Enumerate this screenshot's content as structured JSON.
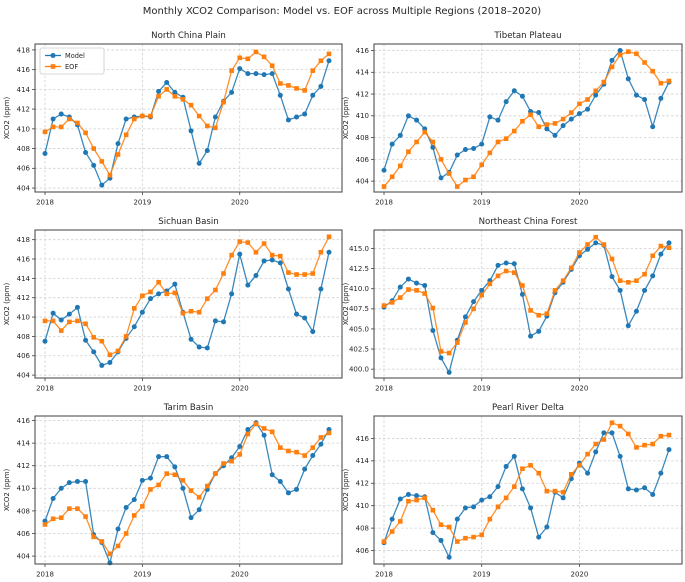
{
  "figure": {
    "suptitle": "Monthly XCO2 Comparison: Model vs. EOF across Multiple Regions (2018–2020)"
  },
  "legend": {
    "items": [
      {
        "label": "Model",
        "color": "#1f77b4",
        "marker": "circle"
      },
      {
        "label": "EOF",
        "color": "#ff7f0e",
        "marker": "square"
      }
    ]
  },
  "colors": {
    "model": "#1f77b4",
    "eof": "#ff7f0e",
    "grid": "#d0d0d0",
    "spine": "#3f3f3f",
    "text": "#262626"
  },
  "time_axis": {
    "description": "36 monthly points, Jan 2018 - Dec 2020",
    "tick_labels": [
      "2018",
      "2019",
      "2020"
    ],
    "tick_month_indices": [
      0,
      12,
      24
    ]
  },
  "chart_data": [
    {
      "type": "line",
      "title": "North China Plain",
      "ylabel": "XCO2 (ppm)",
      "yticks": [
        404,
        406,
        408,
        410,
        412,
        414,
        416,
        418
      ],
      "ytick_decimals": 0,
      "ylim": [
        403.6,
        418.6
      ],
      "x_tick_labels": [
        "2018",
        "2019",
        "2020"
      ],
      "grid": true,
      "legend_position": "upper-left",
      "show_legend": true,
      "series": [
        {
          "name": "Model",
          "values": [
            407.5,
            411.0,
            411.5,
            411.2,
            410.4,
            407.6,
            406.3,
            404.3,
            405.0,
            408.5,
            411.0,
            411.2,
            411.3,
            411.2,
            413.8,
            414.7,
            413.7,
            413.2,
            409.8,
            406.5,
            407.8,
            411.2,
            412.8,
            413.7,
            416.1,
            415.6,
            415.6,
            415.5,
            415.6,
            413.4,
            410.9,
            411.2,
            411.5,
            413.4,
            414.3,
            416.9
          ]
        },
        {
          "name": "EOF",
          "values": [
            409.7,
            410.2,
            410.2,
            411.0,
            410.6,
            409.6,
            408.0,
            406.7,
            405.3,
            407.4,
            409.4,
            411.0,
            411.3,
            411.3,
            413.3,
            414.0,
            413.3,
            413.0,
            412.4,
            411.3,
            410.3,
            410.1,
            412.7,
            415.9,
            417.2,
            417.1,
            417.8,
            417.3,
            416.4,
            414.6,
            414.4,
            414.1,
            413.9,
            415.9,
            416.9,
            417.6
          ]
        }
      ]
    },
    {
      "type": "line",
      "title": "Tibetan Plateau",
      "ylabel": "XCO2 (ppm)",
      "yticks": [
        404,
        406,
        408,
        410,
        412,
        414,
        416
      ],
      "ytick_decimals": 0,
      "ylim": [
        403.0,
        416.6
      ],
      "x_tick_labels": [
        "2018",
        "2019",
        "2020"
      ],
      "grid": true,
      "show_legend": false,
      "series": [
        {
          "name": "Model",
          "values": [
            405.0,
            407.4,
            408.2,
            410.0,
            409.6,
            408.8,
            407.1,
            404.3,
            404.8,
            406.4,
            406.9,
            407.0,
            407.4,
            409.9,
            409.6,
            411.3,
            412.3,
            411.8,
            410.4,
            410.3,
            408.8,
            408.2,
            409.1,
            409.7,
            410.2,
            410.6,
            411.9,
            412.9,
            415.1,
            416.0,
            413.4,
            411.9,
            411.5,
            409.0,
            411.6,
            413.1
          ]
        },
        {
          "name": "EOF",
          "values": [
            403.5,
            404.4,
            405.4,
            406.7,
            407.6,
            408.5,
            407.6,
            406.0,
            404.7,
            403.5,
            404.1,
            404.4,
            405.5,
            406.6,
            407.6,
            407.9,
            408.6,
            409.5,
            410.1,
            409.0,
            409.2,
            409.3,
            409.7,
            410.3,
            411.1,
            411.5,
            412.3,
            413.1,
            414.5,
            415.6,
            415.9,
            415.7,
            414.9,
            414.1,
            413.0,
            413.2
          ]
        }
      ]
    },
    {
      "type": "line",
      "title": "Sichuan Basin",
      "ylabel": "XCO2 (ppm)",
      "yticks": [
        404,
        406,
        408,
        410,
        412,
        414,
        416,
        418
      ],
      "ytick_decimals": 0,
      "ylim": [
        403.7,
        419.0
      ],
      "x_tick_labels": [
        "2018",
        "2019",
        "2020"
      ],
      "grid": true,
      "show_legend": false,
      "series": [
        {
          "name": "Model",
          "values": [
            407.5,
            410.4,
            409.7,
            410.3,
            411.0,
            407.6,
            406.4,
            405.0,
            405.3,
            406.4,
            407.8,
            409.0,
            410.5,
            411.9,
            412.4,
            412.7,
            413.4,
            410.5,
            407.7,
            406.9,
            406.8,
            409.6,
            409.5,
            412.4,
            416.5,
            413.3,
            414.3,
            415.8,
            415.9,
            415.6,
            412.9,
            410.3,
            409.9,
            408.5,
            412.9,
            416.7
          ]
        },
        {
          "name": "EOF",
          "values": [
            409.6,
            409.6,
            408.6,
            409.5,
            409.6,
            409.3,
            407.9,
            407.5,
            406.1,
            406.5,
            408.0,
            410.9,
            412.2,
            412.6,
            413.6,
            412.4,
            412.5,
            410.4,
            410.6,
            410.5,
            411.9,
            412.8,
            414.5,
            416.4,
            417.8,
            417.7,
            416.7,
            417.6,
            416.4,
            416.3,
            414.6,
            414.4,
            414.4,
            414.5,
            416.7,
            418.3
          ]
        }
      ]
    },
    {
      "type": "line",
      "title": "Northeast China Forest",
      "ylabel": "XCO2 (ppm)",
      "yticks": [
        400.0,
        402.5,
        405.0,
        407.5,
        410.0,
        412.5,
        415.0
      ],
      "ytick_decimals": 1,
      "ylim": [
        398.9,
        417.3
      ],
      "x_tick_labels": [
        "2018",
        "2019",
        "2020"
      ],
      "grid": true,
      "show_legend": false,
      "series": [
        {
          "name": "Model",
          "values": [
            407.7,
            408.5,
            410.2,
            411.2,
            410.7,
            410.4,
            404.8,
            401.4,
            399.6,
            403.6,
            406.5,
            408.4,
            409.8,
            411.0,
            412.9,
            413.2,
            413.1,
            409.3,
            404.1,
            404.7,
            406.6,
            409.5,
            410.8,
            412.4,
            414.1,
            414.9,
            415.7,
            415.4,
            411.5,
            409.8,
            405.4,
            407.2,
            409.8,
            411.6,
            414.3,
            415.7
          ]
        },
        {
          "name": "EOF",
          "values": [
            407.9,
            408.3,
            408.9,
            409.9,
            409.8,
            409.4,
            407.6,
            402.2,
            402.0,
            403.3,
            405.8,
            407.5,
            409.2,
            410.6,
            411.6,
            412.2,
            412.0,
            410.4,
            407.3,
            406.7,
            406.9,
            409.8,
            411.0,
            412.6,
            414.5,
            415.5,
            416.4,
            415.5,
            413.7,
            411.0,
            410.8,
            411.0,
            411.8,
            414.1,
            415.3,
            415.1
          ]
        }
      ]
    },
    {
      "type": "line",
      "title": "Tarim Basin",
      "ylabel": "XCO2 (ppm)",
      "yticks": [
        404,
        406,
        408,
        410,
        412,
        414,
        416
      ],
      "ytick_decimals": 0,
      "ylim": [
        403.3,
        416.4
      ],
      "x_tick_labels": [
        "2018",
        "2019",
        "2020"
      ],
      "grid": true,
      "show_legend": false,
      "series": [
        {
          "name": "Model",
          "values": [
            407.1,
            409.1,
            410.0,
            410.5,
            410.6,
            410.6,
            405.9,
            405.2,
            403.4,
            406.4,
            408.3,
            409.0,
            410.7,
            410.9,
            412.8,
            412.8,
            411.9,
            410.0,
            407.4,
            408.1,
            409.9,
            411.3,
            412.0,
            412.7,
            413.7,
            415.2,
            415.8,
            414.7,
            411.2,
            410.6,
            409.6,
            409.9,
            411.7,
            412.9,
            413.9,
            415.2
          ]
        },
        {
          "name": "EOF",
          "values": [
            406.8,
            407.3,
            407.4,
            408.2,
            408.2,
            407.5,
            405.7,
            405.3,
            404.2,
            404.9,
            406.0,
            407.6,
            408.4,
            409.9,
            410.3,
            411.3,
            411.2,
            410.7,
            409.8,
            409.2,
            410.2,
            411.3,
            412.2,
            412.4,
            413.0,
            414.8,
            415.7,
            415.3,
            415.0,
            413.6,
            413.3,
            413.2,
            412.9,
            413.6,
            414.5,
            414.9
          ]
        }
      ]
    },
    {
      "type": "line",
      "title": "Pearl River Delta",
      "ylabel": "XCO2 (ppm)",
      "yticks": [
        406,
        408,
        410,
        412,
        414,
        416
      ],
      "ytick_decimals": 0,
      "ylim": [
        404.8,
        418.0
      ],
      "x_tick_labels": [
        "2018",
        "2019",
        "2020"
      ],
      "grid": true,
      "show_legend": false,
      "series": [
        {
          "name": "Model",
          "values": [
            406.7,
            408.8,
            410.6,
            411.0,
            410.9,
            410.8,
            407.6,
            406.9,
            405.4,
            408.8,
            409.8,
            409.9,
            410.5,
            410.8,
            411.7,
            413.5,
            414.4,
            411.5,
            409.8,
            407.2,
            408.1,
            411.2,
            410.7,
            412.4,
            413.8,
            412.9,
            414.8,
            416.5,
            416.5,
            414.4,
            411.5,
            411.4,
            411.6,
            411.0,
            412.9,
            415.0
          ]
        },
        {
          "name": "EOF",
          "values": [
            406.8,
            407.7,
            408.6,
            410.4,
            410.5,
            410.7,
            409.6,
            408.3,
            408.1,
            406.8,
            407.1,
            407.2,
            407.4,
            408.8,
            409.9,
            410.7,
            411.7,
            413.3,
            413.6,
            412.9,
            411.3,
            411.3,
            411.2,
            412.8,
            413.6,
            414.6,
            415.5,
            415.9,
            417.4,
            417.1,
            416.4,
            415.2,
            415.4,
            415.5,
            416.2,
            416.3
          ]
        }
      ]
    }
  ]
}
